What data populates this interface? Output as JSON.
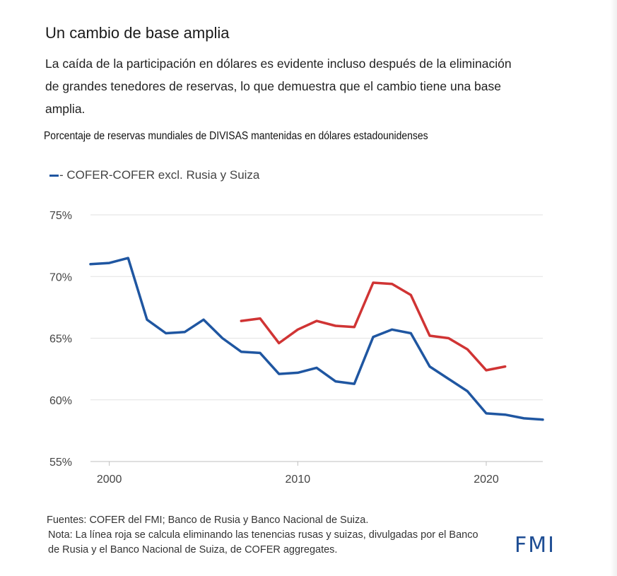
{
  "header": {
    "title": "Un cambio de base amplia",
    "subtitle": "La caída de la participación en dólares es evidente incluso después de la eliminación de grandes tenedores de reservas, lo que demuestra que el cambio tiene una base amplia."
  },
  "footer": {
    "sources": "Fuentes: COFER del FMI; Banco de Rusia y Banco Nacional de Suiza.",
    "note": "Nota: La línea roja se calcula eliminando las tenencias rusas y suizas, divulgadas por el Banco de Rusia y el Banco Nacional de Suiza, de COFER aggregates.",
    "logo": "FMI"
  },
  "chart_data": {
    "type": "line",
    "title": "Porcentaje de reservas mundiales de DIVISAS mantenidas en dólares estadounidenses",
    "legend_text": "- COFER-COFER excl. Rusia y Suiza",
    "legend_position": "top-left",
    "grid": true,
    "xlim": [
      1999,
      2023
    ],
    "ylim": [
      55,
      75
    ],
    "x_ticks": [
      2000,
      2010,
      2020
    ],
    "y_ticks": [
      {
        "value": 75,
        "label": "75%"
      },
      {
        "value": 70,
        "label": "70%"
      },
      {
        "value": 65,
        "label": "65%"
      },
      {
        "value": 60,
        "label": "60%"
      },
      {
        "value": 55,
        "label": "55%"
      }
    ],
    "series": [
      {
        "name": "COFER",
        "color": "#1f56a1",
        "x": [
          1999,
          2000,
          2001,
          2002,
          2003,
          2004,
          2005,
          2006,
          2007,
          2008,
          2009,
          2010,
          2011,
          2012,
          2013,
          2014,
          2015,
          2016,
          2017,
          2018,
          2019,
          2020,
          2021,
          2022,
          2023
        ],
        "y": [
          71.0,
          71.1,
          71.5,
          66.5,
          65.4,
          65.5,
          66.5,
          65.0,
          63.9,
          63.8,
          62.1,
          62.2,
          62.6,
          61.5,
          61.3,
          65.1,
          65.7,
          65.4,
          62.7,
          61.7,
          60.7,
          58.9,
          58.8,
          58.5,
          58.4
        ]
      },
      {
        "name": "COFER excl. Rusia y Suiza",
        "color": "#d03434",
        "x": [
          2007,
          2008,
          2009,
          2010,
          2011,
          2012,
          2013,
          2014,
          2015,
          2016,
          2017,
          2018,
          2019,
          2020,
          2021
        ],
        "y": [
          66.4,
          66.6,
          64.6,
          65.7,
          66.4,
          66.0,
          65.9,
          69.5,
          69.4,
          68.5,
          65.2,
          65.0,
          64.1,
          62.4,
          62.7
        ]
      }
    ]
  }
}
